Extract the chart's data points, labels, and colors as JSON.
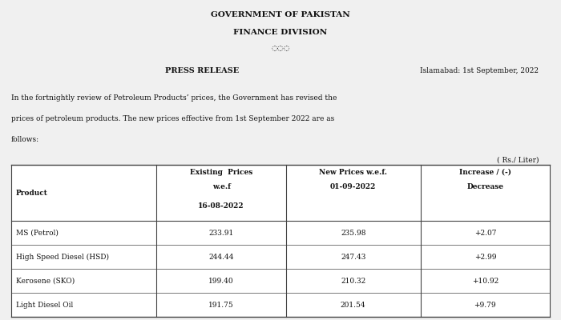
{
  "title_line1": "GOVERNMENT OF PAKISTAN",
  "title_line2": "FINANCE DIVISION",
  "diamond_symbol": "◌◌◌",
  "date_text": "Islamabad: 1st September, 2022",
  "press_release": "PRESS RELEASE",
  "body_line1": "In the fortnightly review of Petroleum Products’ prices, the Government has revised the",
  "body_line2": "prices of petroleum products. The new prices effective from 1st September 2022 are as",
  "body_line3": "follows:",
  "unit_text": "( Rs./ Liter)",
  "col_headers_row1": [
    "Product",
    "Existing  Prices",
    "New Prices w.e.f.",
    "Increase / (-)"
  ],
  "col_headers_row2": [
    "",
    "w.e.f",
    "01-09-2022",
    "Decrease"
  ],
  "col_headers_row3": [
    "",
    "16-08-2022",
    "",
    ""
  ],
  "rows": [
    [
      "MS (Petrol)",
      "233.91",
      "235.98",
      "+2.07"
    ],
    [
      "High Speed Diesel (HSD)",
      "244.44",
      "247.43",
      "+2.99"
    ],
    [
      "Kerosene (SKO)",
      "199.40",
      "210.32",
      "+10.92"
    ],
    [
      "Light Diesel Oil",
      "191.75",
      "201.54",
      "+9.79"
    ]
  ],
  "bg_color": "#f0f0f0",
  "text_color": "#111111",
  "border_color": "#444444",
  "title_fontsize": 7.5,
  "body_fontsize": 6.5,
  "table_fontsize": 6.5
}
